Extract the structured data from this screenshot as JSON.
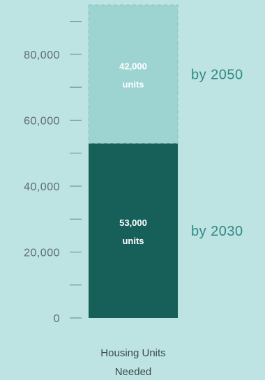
{
  "chart_data": {
    "type": "bar",
    "stacked": true,
    "categories": [
      "Housing Units Needed"
    ],
    "category_label_lines": [
      "Housing Units",
      "Needed"
    ],
    "ylim": [
      0,
      95000
    ],
    "y_ticks": [
      0,
      10000,
      20000,
      30000,
      40000,
      50000,
      60000,
      70000,
      80000,
      90000
    ],
    "y_tick_labels": {
      "0": "0",
      "20000": "20,000",
      "40000": "40,000",
      "60000": "60,000",
      "80000": "80,000"
    },
    "series": [
      {
        "name": "by 2030",
        "values": [
          53000
        ],
        "label_lines": [
          "53,000",
          "units"
        ],
        "color": "#17605a",
        "label_color": "#ffffff",
        "dashed": false
      },
      {
        "name": "by 2050",
        "values": [
          42000
        ],
        "label_lines": [
          "42,000",
          "units"
        ],
        "color": "#9dd4d2",
        "label_color": "#ffffff",
        "dashed": true
      }
    ],
    "grid": false,
    "legend": "right of bar"
  },
  "colors": {
    "background": "#bde3e2",
    "axis_tick": "#6f8281",
    "tick_text": "#5f6f6e",
    "side_label": "#2f8a85",
    "category_text": "#3b4a49"
  }
}
